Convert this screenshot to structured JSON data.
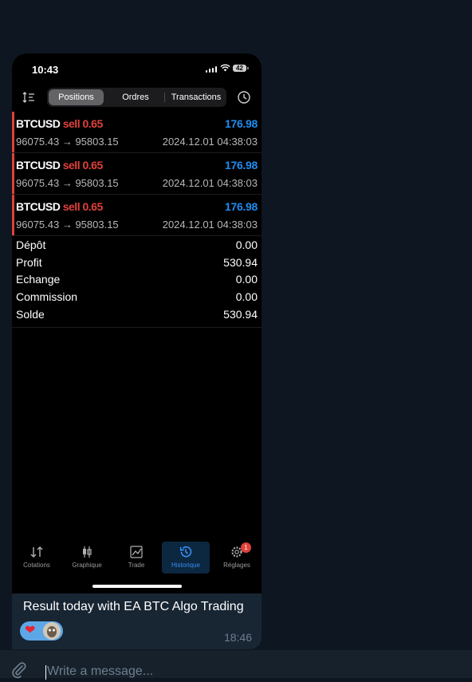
{
  "status_bar": {
    "time": "10:43",
    "battery": "42"
  },
  "segments": [
    {
      "label": "Positions",
      "active": true
    },
    {
      "label": "Ordres",
      "active": false
    },
    {
      "label": "Transactions",
      "active": false
    }
  ],
  "positions": [
    {
      "symbol": "BTCUSD",
      "side": "sell 0.65",
      "profit": "176.98",
      "prices": "96075.43 → 95803.15",
      "time": "2024.12.01 04:38:03"
    },
    {
      "symbol": "BTCUSD",
      "side": "sell 0.65",
      "profit": "176.98",
      "prices": "96075.43 → 95803.15",
      "time": "2024.12.01 04:38:03"
    },
    {
      "symbol": "BTCUSD",
      "side": "sell 0.65",
      "profit": "176.98",
      "prices": "96075.43 → 95803.15",
      "time": "2024.12.01 04:38:03"
    }
  ],
  "summary": [
    {
      "label": "Dépôt",
      "value": "0.00"
    },
    {
      "label": "Profit",
      "value": "530.94"
    },
    {
      "label": "Echange",
      "value": "0.00"
    },
    {
      "label": "Commission",
      "value": "0.00"
    },
    {
      "label": "Solde",
      "value": "530.94"
    }
  ],
  "tabs": [
    {
      "label": "Cotations",
      "icon": "arrows-icon"
    },
    {
      "label": "Graphique",
      "icon": "candles-icon"
    },
    {
      "label": "Trade",
      "icon": "chart-line-icon"
    },
    {
      "label": "Historique",
      "icon": "history-icon",
      "active": true
    },
    {
      "label": "Réglages",
      "icon": "gear-icon",
      "badge": "1"
    }
  ],
  "message": {
    "caption": "Result today with EA BTC Algo Trading",
    "time": "18:46",
    "reaction": "heart"
  },
  "composer": {
    "placeholder": "Write a message..."
  },
  "colors": {
    "background": "#0e1621",
    "sell": "#e0413b",
    "profit": "#1f8df0",
    "active_tab": "#3a8ef6"
  }
}
